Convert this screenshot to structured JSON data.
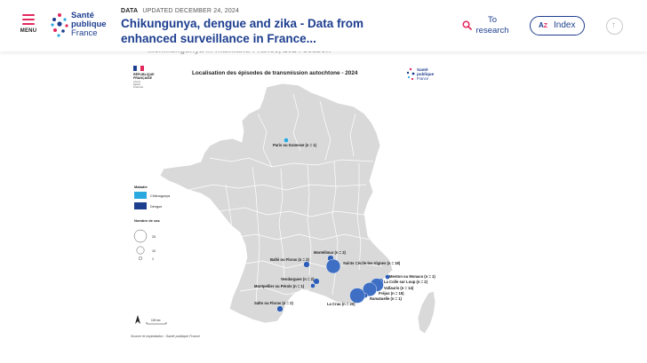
{
  "header": {
    "menu_label": "MENU",
    "logo": {
      "line1": "Santé",
      "line2": "publique",
      "line3": "France"
    },
    "meta_tag": "DATA",
    "meta_updated": "UPDATED DECEMBER 24, 2024",
    "title": "Chikungunya, dengue and zika - Data from enhanced surveillance in France...",
    "research_label": "To research",
    "index_label": "Index",
    "index_icon": "az-icon",
    "back_to_top_icon": "arrow-up-icon"
  },
  "cut_heading": "...chikungunya in mainland France, 2024 season",
  "map": {
    "title": "Localisation des épisodes de transmission autochtone - 2024",
    "republic": {
      "line1": "RÉPUBLIQUE",
      "line2": "FRANÇAISE",
      "motto1": "Liberté",
      "motto2": "Égalité",
      "motto3": "Fraternité"
    },
    "spf_logo": {
      "line1": "Santé",
      "line2": "publique",
      "line3": "France"
    },
    "legend": {
      "maladie_title": "Maladie",
      "items": [
        {
          "label": "Chikungunya",
          "color": "#2aa9e0"
        },
        {
          "label": "Dengue",
          "color": "#1d3e8f"
        }
      ],
      "cases_title": "Nombre de cas",
      "sizes": [
        "25",
        "10",
        "1"
      ]
    },
    "scale_label": "100 km",
    "source": "Source et exploitation : Santé publique France",
    "episodes": [
      {
        "label": "Paris ou Gonesse (n = 1)",
        "disease": "Chikungunya",
        "cases": 1
      },
      {
        "label": "Montélimar (n = 2)",
        "disease": "Dengue",
        "cases": 2
      },
      {
        "label": "Balbi ou Floras (n = 2)",
        "disease": "Dengue",
        "cases": 2
      },
      {
        "label": "Sainte Cécile-les-Vignes (n = 18)",
        "disease": "Dengue",
        "cases": 18
      },
      {
        "label": "Vendargues (n = 2)",
        "disease": "Dengue",
        "cases": 2
      },
      {
        "label": "Montpellier ou Pérols (n = 1)",
        "disease": "Dengue",
        "cases": 1
      },
      {
        "label": "Menton ou Monaco (n = 1)",
        "disease": "Dengue",
        "cases": 1
      },
      {
        "label": "La Colle sur Loup (n = 2)",
        "disease": "Dengue",
        "cases": 2
      },
      {
        "label": "Vallauris (n = 14)",
        "disease": "Dengue",
        "cases": 14
      },
      {
        "label": "Fréjus (n = 15)",
        "disease": "Dengue",
        "cases": 15
      },
      {
        "label": "Ramatuelle (n = 1)",
        "disease": "Dengue",
        "cases": 1
      },
      {
        "label": "La Crau (n = 20)",
        "disease": "Dengue",
        "cases": 20
      },
      {
        "label": "Salto ou Floras (n = 2)",
        "disease": "Dengue",
        "cases": 2
      }
    ],
    "colors": {
      "land": "#d9d9d9",
      "border": "#ffffff",
      "accent": "#e2275d",
      "brand": "#1d3e8f"
    }
  }
}
